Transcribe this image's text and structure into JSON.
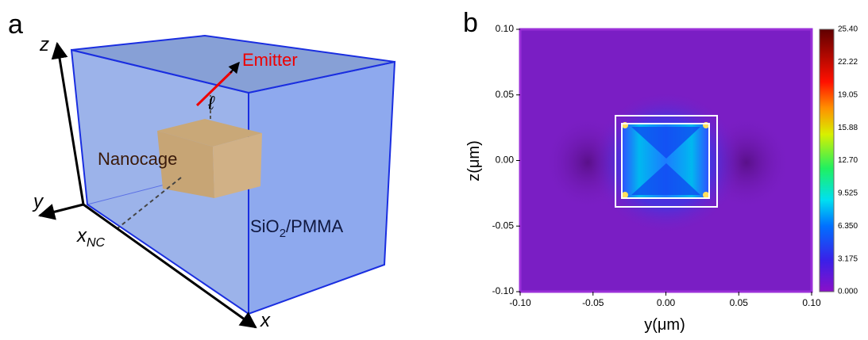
{
  "panel_a": {
    "label": "a",
    "axis_z": "z",
    "axis_y": "y",
    "axis_x": "x",
    "x_nc": {
      "base": "x",
      "sub": "NC"
    },
    "emitter": "Emitter",
    "ell": "ℓ",
    "nanocage": "Nanocage",
    "medium": {
      "pre": "SiO",
      "sub": "2",
      "post": "/PMMA"
    }
  },
  "panel_b": {
    "label": "b",
    "xlabel": "y(μm)",
    "ylabel": "z(μm)",
    "xticks": [
      "-0.10",
      "-0.05",
      "0.00",
      "0.05",
      "0.10"
    ],
    "yticks": [
      "0.10",
      "0.05",
      "0.00",
      "-0.05",
      "-0.10"
    ],
    "colorbar_ticks": [
      "25.40",
      "22.22",
      "19.05",
      "15.88",
      "12.70",
      "9.525",
      "6.350",
      "3.175",
      "0.000"
    ]
  }
}
